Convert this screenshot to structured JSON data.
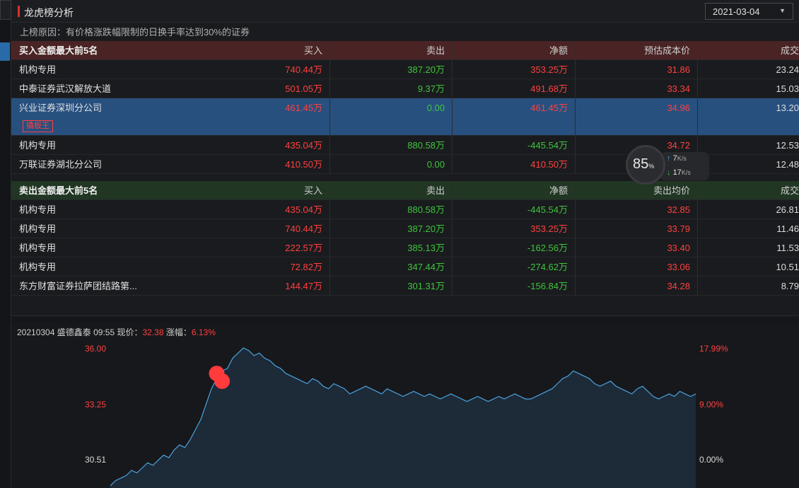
{
  "header": {
    "title": "龙虎榜分析",
    "date": "2021-03-04",
    "reason": "上榜原因：有价格涨跌幅限制的日换手率达到30%的证券"
  },
  "buy_table": {
    "columns": [
      "买入金额最大前5名",
      "买入",
      "卖出",
      "净额",
      "预估成本价",
      "成交"
    ],
    "rows": [
      {
        "name": "机构专用",
        "buy": "740.44万",
        "sell": "387.20万",
        "net": "353.25万",
        "price": "31.86",
        "vol": "23.24"
      },
      {
        "name": "中泰证券武汉解放大道",
        "buy": "501.05万",
        "sell": "9.37万",
        "net": "491.68万",
        "price": "33.34",
        "vol": "15.03"
      },
      {
        "name": "兴业证券深圳分公司",
        "buy": "461.45万",
        "sell": "0.00",
        "net": "461.45万",
        "price": "34.96",
        "vol": "13.20",
        "tag": "撬板王"
      },
      {
        "name": "机构专用",
        "buy": "435.04万",
        "sell": "880.58万",
        "net": "-445.54万",
        "price": "34.72",
        "vol": "12.53"
      },
      {
        "name": "万联证券湖北分公司",
        "buy": "410.50万",
        "sell": "0.00",
        "net": "410.50万",
        "price": "",
        "vol": "12.48"
      }
    ]
  },
  "sell_table": {
    "columns": [
      "卖出金额最大前5名",
      "买入",
      "卖出",
      "净额",
      "卖出均价",
      "成交"
    ],
    "rows": [
      {
        "name": "机构专用",
        "buy": "435.04万",
        "sell": "880.58万",
        "net": "-445.54万",
        "price": "32.85",
        "vol": "26.81"
      },
      {
        "name": "机构专用",
        "buy": "740.44万",
        "sell": "387.20万",
        "net": "353.25万",
        "price": "33.79",
        "vol": "11.46"
      },
      {
        "name": "机构专用",
        "buy": "222.57万",
        "sell": "385.13万",
        "net": "-162.56万",
        "price": "33.40",
        "vol": "11.53"
      },
      {
        "name": "机构专用",
        "buy": "72.82万",
        "sell": "347.44万",
        "net": "-274.62万",
        "price": "33.06",
        "vol": "10.51"
      },
      {
        "name": "东方财富证券拉萨团结路第...",
        "buy": "144.47万",
        "sell": "301.31万",
        "net": "-156.84万",
        "price": "34.28",
        "vol": "8.79"
      }
    ]
  },
  "chart_info": {
    "date": "20210304",
    "stock": "盛德鑫泰",
    "time": "09:55",
    "price_label": "现价：",
    "price": "32.38",
    "change_label": "涨幅：",
    "change": "6.13%"
  },
  "chart_data": {
    "type": "area",
    "y_left_ticks": [
      "36.00",
      "33.25",
      "30.51"
    ],
    "y_right_ticks": [
      "17.99%",
      "9.00%",
      "0.00%"
    ],
    "ylim": [
      30.51,
      36.0
    ],
    "values": [
      30.6,
      30.8,
      30.9,
      31.0,
      31.2,
      31.1,
      31.3,
      31.5,
      31.4,
      31.6,
      31.8,
      31.7,
      32.0,
      32.2,
      32.1,
      32.4,
      32.8,
      33.2,
      33.8,
      34.4,
      34.8,
      35.1,
      35.2,
      35.6,
      35.8,
      36.0,
      35.9,
      35.7,
      35.8,
      35.6,
      35.5,
      35.3,
      35.2,
      35.0,
      34.9,
      34.8,
      34.7,
      34.6,
      34.8,
      34.7,
      34.5,
      34.4,
      34.6,
      34.5,
      34.4,
      34.2,
      34.3,
      34.4,
      34.5,
      34.4,
      34.3,
      34.2,
      34.4,
      34.3,
      34.2,
      34.1,
      34.2,
      34.3,
      34.2,
      34.1,
      34.2,
      34.1,
      34.0,
      34.1,
      34.2,
      34.1,
      34.0,
      33.9,
      34.0,
      34.1,
      34.0,
      33.9,
      34.0,
      34.1,
      34.0,
      34.1,
      34.2,
      34.1,
      34.0,
      34.0,
      34.1,
      34.2,
      34.3,
      34.4,
      34.6,
      34.8,
      34.9,
      35.1,
      35.0,
      34.9,
      34.8,
      34.6,
      34.5,
      34.6,
      34.7,
      34.5,
      34.4,
      34.3,
      34.2,
      34.4,
      34.5,
      34.3,
      34.1,
      34.0,
      34.1,
      34.2,
      34.1,
      34.3,
      34.2,
      34.1,
      34.2
    ],
    "markers": [
      {
        "index": 20,
        "value": 35.0
      },
      {
        "index": 21,
        "value": 34.7
      }
    ],
    "colors": {
      "line": "#4aa3df",
      "fill": "#1d2a38",
      "marker": "#ff3b3b",
      "left_axis": "#ff4040",
      "right_axis": "#ff4040"
    }
  },
  "speed_widget": {
    "percent": "85",
    "percent_unit": "%",
    "up": "7",
    "down": "17",
    "unit": "K/s"
  }
}
